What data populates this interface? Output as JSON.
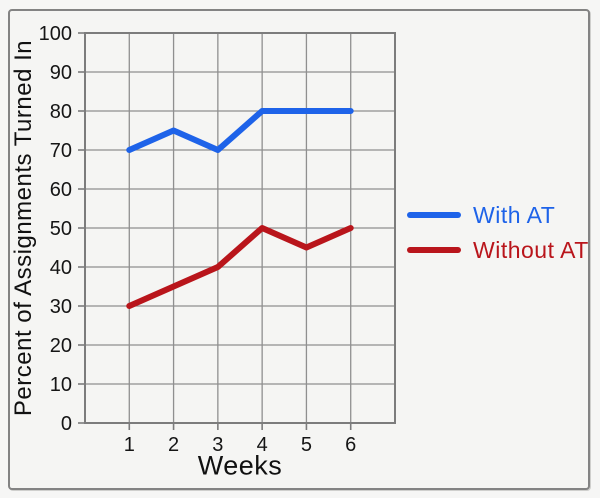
{
  "chart_data": {
    "type": "line",
    "title": "",
    "xlabel": "Weeks",
    "ylabel": "Percent of Assignments Turned In",
    "x": [
      1,
      2,
      3,
      4,
      5,
      6
    ],
    "xticks": [
      1,
      2,
      3,
      4,
      5,
      6
    ],
    "xlim": [
      0,
      7
    ],
    "ylim": [
      0,
      100
    ],
    "ytick_step": 10,
    "grid": true,
    "legend_position": "right",
    "series": [
      {
        "name": "With AT",
        "color": "#1e63e9",
        "values": [
          70,
          75,
          70,
          80,
          80,
          80
        ]
      },
      {
        "name": "Without AT",
        "color": "#b9151b",
        "values": [
          30,
          35,
          40,
          50,
          45,
          50
        ]
      }
    ],
    "style": {
      "grid_color": "#8f8f8f",
      "axis_color": "#7c7c7c",
      "background": "#f5f5f3",
      "line_width": 6
    }
  }
}
